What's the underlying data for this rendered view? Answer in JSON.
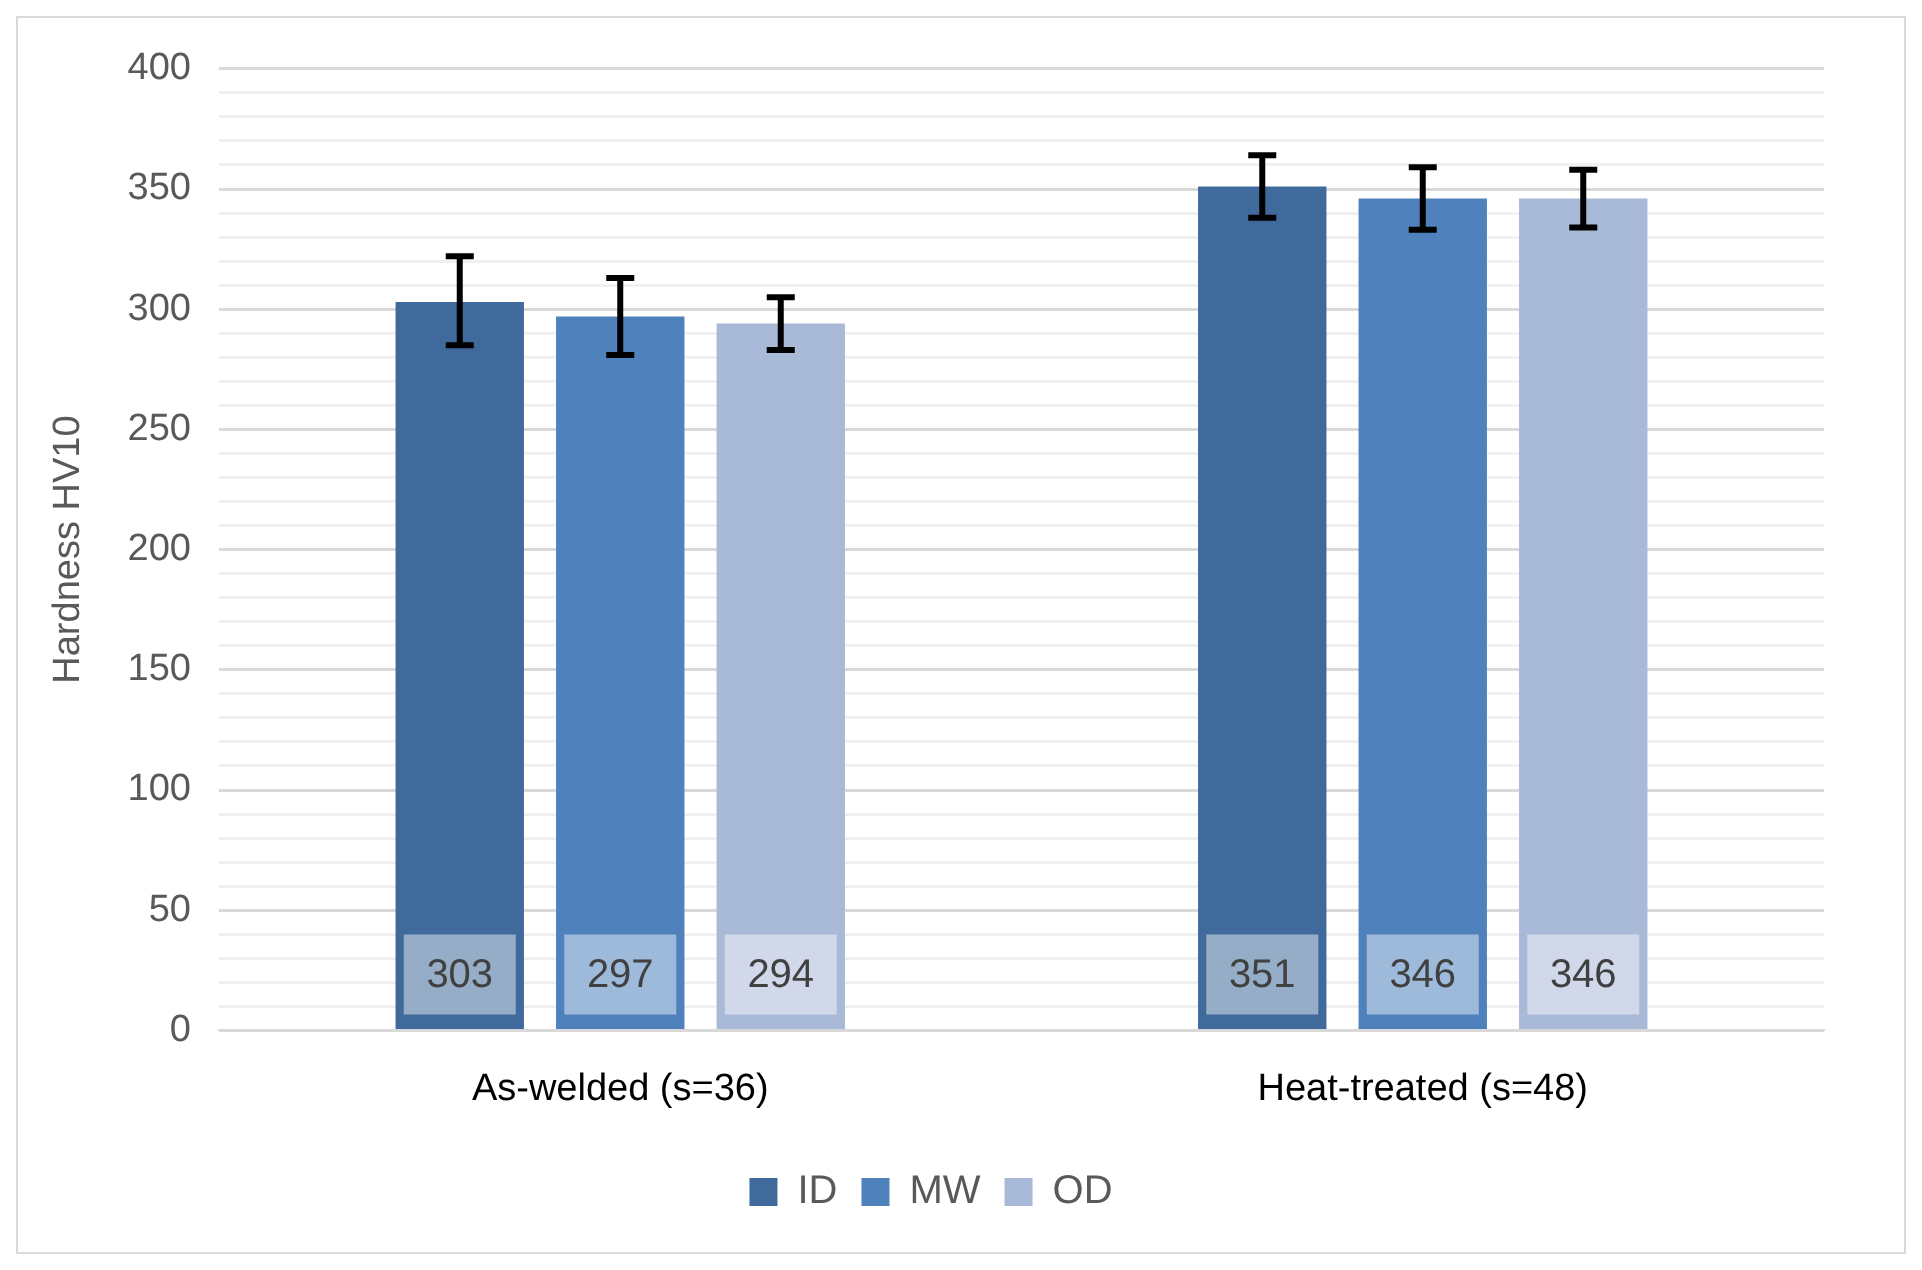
{
  "chart_data": {
    "type": "bar",
    "ylabel": "Hardness HV10",
    "categories": [
      "As-welded (s=36)",
      "Heat-treated (s=48)"
    ],
    "series": [
      {
        "name": "ID",
        "color": "#416a9c",
        "values": [
          303,
          351
        ],
        "errors": [
          [
            285,
            322
          ],
          [
            338,
            364
          ]
        ]
      },
      {
        "name": "MW",
        "color": "#4f81bd",
        "values": [
          297,
          346
        ],
        "errors": [
          [
            281,
            313
          ],
          [
            333,
            359
          ]
        ]
      },
      {
        "name": "OD",
        "color": "#a9b9d8",
        "values": [
          294,
          346
        ],
        "errors": [
          [
            283,
            305
          ],
          [
            334,
            358
          ]
        ]
      }
    ],
    "ylim": [
      0,
      400
    ],
    "yticks": [
      0,
      {
        "value": 10,
        "label": null
      },
      {
        "value": 20,
        "label": null
      },
      {
        "value": 30,
        "label": null
      },
      {
        "value": 40,
        "label": null
      },
      50,
      {
        "value": 60,
        "label": null
      },
      {
        "value": 70,
        "label": null
      },
      {
        "value": 80,
        "label": null
      },
      {
        "value": 90,
        "label": null
      },
      100,
      {
        "value": 110,
        "label": null
      },
      {
        "value": 120,
        "label": null
      },
      {
        "value": 130,
        "label": null
      },
      {
        "value": 140,
        "label": null
      },
      150,
      {
        "value": 160,
        "label": null
      },
      {
        "value": 170,
        "label": null
      },
      {
        "value": 180,
        "label": null
      },
      {
        "value": 190,
        "label": null
      },
      200,
      {
        "value": 210,
        "label": null
      },
      {
        "value": 220,
        "label": null
      },
      {
        "value": 230,
        "label": null
      },
      {
        "value": 240,
        "label": null
      },
      250,
      {
        "value": 260,
        "label": null
      },
      {
        "value": 270,
        "label": null
      },
      {
        "value": 280,
        "label": null
      },
      {
        "value": 290,
        "label": null
      },
      300,
      {
        "value": 310,
        "label": null
      },
      {
        "value": 320,
        "label": null
      },
      {
        "value": 330,
        "label": null
      },
      {
        "value": 340,
        "label": null
      },
      350,
      {
        "value": 360,
        "label": null
      },
      {
        "value": 370,
        "label": null
      },
      {
        "value": 380,
        "label": null
      },
      {
        "value": 390,
        "label": null
      },
      400
    ],
    "grid": "y",
    "legend": "bottom",
    "data_labels": true
  }
}
